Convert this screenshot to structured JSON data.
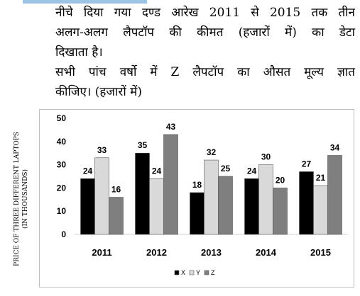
{
  "question": {
    "lines": [
      "नीचे दिया गया दण्ड आरेख 2011 से 2015 तक तीन",
      "अलग-अलग लैपटॉप की कीमत (हजारों में) का डेटा",
      "दिखाता है।",
      "सभी पांच वर्षो में Z लैपटॉप का औसत मूल्य ज्ञात",
      "कीजिए। (हजारों में)"
    ]
  },
  "colors": {
    "X": "#000000",
    "Y": "#d9d9d9",
    "Z": "#7f7f7f"
  },
  "chart_data": {
    "type": "bar",
    "categories": [
      "2011",
      "2012",
      "2013",
      "2014",
      "2015"
    ],
    "series": [
      {
        "name": "X",
        "values": [
          24,
          35,
          18,
          24,
          27
        ]
      },
      {
        "name": "Y",
        "values": [
          33,
          24,
          32,
          30,
          21
        ]
      },
      {
        "name": "Z",
        "values": [
          16,
          43,
          25,
          20,
          34
        ]
      }
    ],
    "ylim": [
      0,
      50
    ],
    "yticks": [
      0,
      10,
      20,
      30,
      40,
      50
    ],
    "ylabel_line1": "PRICE OF THREE DIFFERENT LAPTOPS",
    "ylabel_line2": "(IN THOUSANDS)",
    "xlabel": "",
    "title": "",
    "legend_position": "bottom"
  }
}
